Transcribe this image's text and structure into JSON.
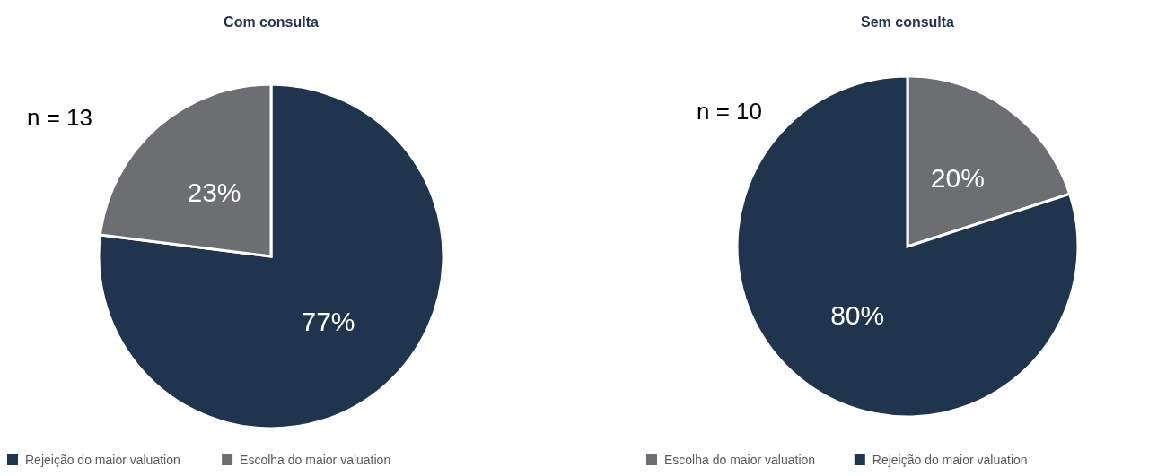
{
  "chart_data": [
    {
      "type": "pie",
      "title": "Com consulta",
      "categories": [
        "Rejeição do maior valuation",
        "Escolha do maior valuation"
      ],
      "values": [
        77,
        23
      ],
      "colors": [
        "#20344d",
        "#6d6e71"
      ],
      "value_labels": [
        "77%",
        "23%"
      ],
      "legend": "bottom",
      "annotations": [
        "n = 13"
      ]
    },
    {
      "type": "pie",
      "title": "Sem consulta",
      "categories": [
        "Escolha do maior valuation",
        "Rejeição do maior valuation"
      ],
      "values": [
        20,
        80
      ],
      "colors": [
        "#6d6e71",
        "#20344d"
      ],
      "value_labels": [
        "20%",
        "80%"
      ],
      "legend": "bottom",
      "annotations": [
        "n = 10"
      ]
    }
  ]
}
